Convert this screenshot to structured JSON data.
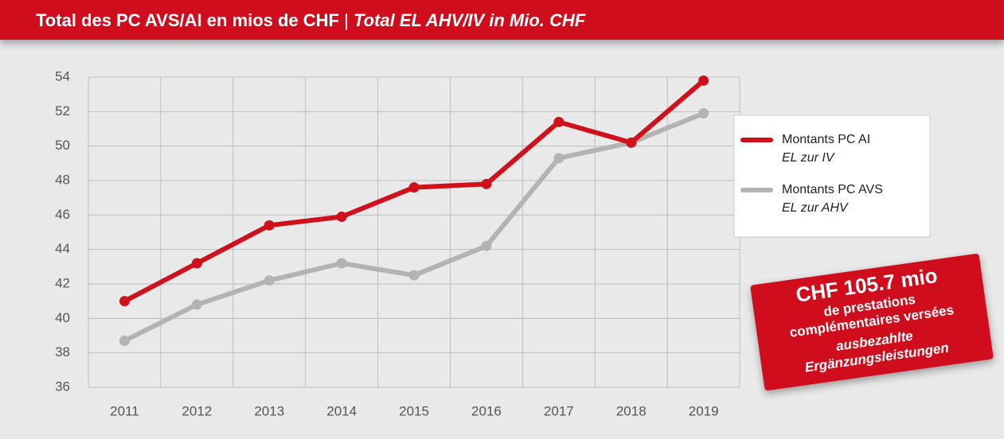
{
  "chart_data": {
    "type": "line",
    "title": [
      "Total des PC AVS/AI en mios de CHF",
      "|",
      "Total EL AHV/IV in Mio. CHF"
    ],
    "categories": [
      "2011",
      "2012",
      "2013",
      "2014",
      "2015",
      "2016",
      "2017",
      "2018",
      "2019"
    ],
    "series": [
      {
        "name": "Montants PC AI",
        "name_de": "EL zur IV",
        "color": "#d0101b",
        "values": [
          41.0,
          43.2,
          45.4,
          45.9,
          47.6,
          47.8,
          51.4,
          50.2,
          53.8
        ]
      },
      {
        "name": "Montants PC AVS",
        "name_de": "EL zur AHV",
        "color": "#b3b3b3",
        "values": [
          38.7,
          40.8,
          42.2,
          43.2,
          42.5,
          44.2,
          49.3,
          50.2,
          51.9
        ]
      }
    ],
    "ylim": [
      36,
      54
    ],
    "yticks": [
      36,
      38,
      40,
      42,
      44,
      46,
      48,
      50,
      52,
      54
    ],
    "grid": true,
    "legend": "upper right",
    "annotation": [
      "CHF 105.7 mio",
      "de prestations",
      "complémentaires versées",
      "ausbezahlte",
      "Ergänzungsleistungen"
    ]
  }
}
